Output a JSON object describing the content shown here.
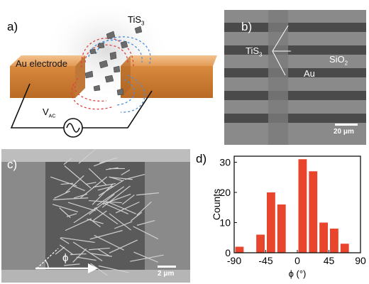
{
  "panel_a": {
    "label": "a)",
    "material": "TiS",
    "material_sub": "3",
    "electrode": "Au electrode",
    "source": "V",
    "source_sub": "AC",
    "colors": {
      "electrode": "#e8a060",
      "field_red": "#e04040",
      "field_blue": "#4a8fd8",
      "flake": "#6b6b6b"
    }
  },
  "panel_b": {
    "label": "b)",
    "tis3": "TiS",
    "tis3_sub": "3",
    "au": "Au",
    "sio2": "SiO",
    "sio2_sub": "2",
    "scale": "20 μm"
  },
  "panel_c": {
    "label": "c)",
    "angle": "ϕ",
    "scale": "2 μm"
  },
  "panel_d": {
    "label": "d)"
  },
  "chart_data": {
    "type": "bar",
    "xlabel": "ϕ (°)",
    "ylabel": "Counts",
    "bin_width": 15,
    "bin_centers": [
      -82.5,
      -67.5,
      -52.5,
      -37.5,
      -22.5,
      -7.5,
      7.5,
      22.5,
      37.5,
      52.5,
      67.5,
      82.5
    ],
    "values": [
      2,
      0,
      6,
      20,
      16,
      0,
      31,
      27,
      10,
      8,
      3,
      0
    ],
    "xlim": [
      -90,
      90
    ],
    "ylim": [
      0,
      32
    ],
    "xticks": [
      "-90",
      "-45",
      "0",
      "45",
      "90"
    ],
    "yticks": [
      "0",
      "10",
      "20",
      "30"
    ],
    "bar_color": "#e8452c"
  }
}
